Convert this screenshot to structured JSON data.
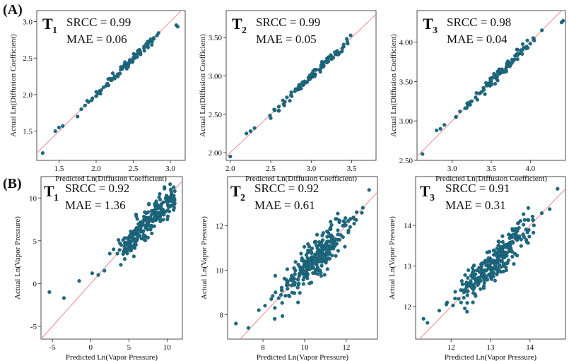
{
  "panel_labels": [
    "(A)",
    "(B)"
  ],
  "colors": {
    "point": "#1d6b82",
    "point_edge": "#0f4a5c",
    "diagonal": "#f08a8a",
    "frame": "#222222"
  },
  "chart_data": [
    {
      "type": "scatter",
      "id": "A1",
      "name_main": "T",
      "name_sub": "1",
      "stat_lines": [
        "SRCC = 0.99",
        "MAE = 0.06"
      ],
      "xlabel": "Predicted Ln(Diffusion Coefficient)",
      "ylabel": "Actual Ln(Diffusion Coefficient)",
      "xlim": [
        1.2,
        3.2
      ],
      "ylim": [
        1.1,
        3.15
      ],
      "xticks": [
        1.5,
        2.0,
        2.5,
        3.0
      ],
      "xtick_labels": [
        "1.5",
        "2.0",
        "2.5",
        "3.0"
      ],
      "yticks": [
        1.5,
        2.0,
        2.5,
        3.0
      ],
      "ytick_labels": [
        "1.5",
        "2.0",
        "2.5",
        "3.0"
      ],
      "trend": "linear",
      "seed": 11,
      "n_generated": 70,
      "spread": 0.03,
      "x": [
        1.28,
        1.45,
        1.5,
        1.55,
        1.75,
        1.8,
        1.85,
        1.9,
        1.95,
        2.0,
        2.05,
        2.1,
        2.15,
        2.2,
        2.25,
        2.3,
        2.35,
        2.4,
        2.45,
        2.5,
        2.55,
        2.6,
        2.65,
        2.7,
        2.75,
        3.08,
        3.1
      ],
      "y": [
        1.2,
        1.5,
        1.55,
        1.57,
        1.7,
        1.8,
        1.85,
        1.9,
        1.95,
        1.98,
        2.05,
        2.1,
        2.15,
        2.2,
        2.22,
        2.28,
        2.35,
        2.42,
        2.45,
        2.5,
        2.52,
        2.55,
        2.6,
        2.7,
        2.68,
        2.95,
        2.93
      ]
    },
    {
      "type": "scatter",
      "id": "A2",
      "name_main": "T",
      "name_sub": "2",
      "stat_lines": [
        "SRCC = 0.99",
        "MAE = 0.05"
      ],
      "xlabel": "Predicted Ln(Diffusion Coefficient)",
      "ylabel": "Actual Ln(Diffusion Coefficient)",
      "xlim": [
        1.95,
        3.8
      ],
      "ylim": [
        1.9,
        3.85
      ],
      "xticks": [
        2.0,
        2.5,
        3.0,
        3.5
      ],
      "xtick_labels": [
        "2.0",
        "2.5",
        "3.0",
        "3.5"
      ],
      "yticks": [
        2.0,
        2.5,
        3.0,
        3.5
      ],
      "ytick_labels": [
        "2.00",
        "2.50",
        "3.00",
        "3.50"
      ],
      "trend": "linear",
      "seed": 23,
      "n_generated": 75,
      "spread": 0.03,
      "x": [
        2.0,
        2.2,
        2.25,
        2.3,
        2.5,
        2.55,
        2.6,
        2.65,
        2.7,
        2.75,
        2.8,
        2.85,
        2.9,
        2.95,
        3.0,
        3.05,
        3.1,
        3.15,
        3.2,
        3.25,
        3.3,
        3.35,
        3.4,
        3.45,
        3.8,
        3.81
      ],
      "y": [
        1.95,
        2.25,
        2.28,
        2.32,
        2.45,
        2.55,
        2.6,
        2.68,
        2.72,
        2.75,
        2.8,
        2.85,
        2.88,
        2.92,
        3.0,
        3.02,
        3.08,
        3.12,
        3.2,
        3.22,
        3.28,
        3.3,
        3.38,
        3.42,
        3.65,
        3.67
      ]
    },
    {
      "type": "scatter",
      "id": "A3",
      "name_main": "T",
      "name_sub": "3",
      "stat_lines": [
        "SRCC = 0.98",
        "MAE = 0.04"
      ],
      "xlabel": "Predicted Ln(Diffusion Coefficient)",
      "ylabel": "Actual Ln(Diffusion Coefficient)",
      "xlim": [
        2.55,
        4.45
      ],
      "ylim": [
        2.5,
        4.4
      ],
      "xticks": [
        3.0,
        3.5,
        4.0
      ],
      "xtick_labels": [
        "3.0",
        "3.5",
        "4.0"
      ],
      "yticks": [
        2.5,
        3.0,
        3.5,
        4.0
      ],
      "ytick_labels": [
        "2.50",
        "3.00",
        "3.50",
        "4.00"
      ],
      "trend": "linear",
      "seed": 37,
      "n_generated": 80,
      "spread": 0.035,
      "x": [
        2.62,
        2.8,
        2.85,
        2.9,
        3.05,
        3.1,
        3.2,
        3.25,
        3.3,
        3.35,
        3.4,
        3.45,
        3.5,
        3.55,
        3.6,
        3.65,
        3.7,
        3.75,
        3.8,
        3.85,
        3.9,
        3.95,
        4.0,
        4.05,
        4.4,
        4.42
      ],
      "y": [
        2.58,
        2.88,
        2.9,
        2.95,
        3.05,
        3.12,
        3.2,
        3.25,
        3.3,
        3.35,
        3.42,
        3.45,
        3.5,
        3.55,
        3.6,
        3.62,
        3.7,
        3.72,
        3.78,
        3.85,
        3.9,
        3.92,
        3.98,
        4.02,
        4.25,
        4.27
      ]
    },
    {
      "type": "scatter",
      "id": "B1",
      "name_main": "T",
      "name_sub": "1",
      "stat_lines": [
        "SRCC = 0.92",
        "MAE = 1.36"
      ],
      "xlabel": "Predicted Ln(Vapor Pressure)",
      "ylabel": "Actual Ln(Vapor Pressure)",
      "xlim": [
        -6.5,
        12
      ],
      "ylim": [
        -6.5,
        12.5
      ],
      "xticks": [
        -5,
        0,
        5,
        10
      ],
      "xtick_labels": [
        "-5",
        "0",
        "5",
        "10"
      ],
      "yticks": [
        -5,
        0,
        5,
        10
      ],
      "ytick_labels": [
        "-5",
        "0",
        "5",
        "10"
      ],
      "trend": "vapor",
      "seed": 53,
      "n_generated": 230,
      "spread": 0.9,
      "x": [
        -5.4,
        -3.5,
        -1.5,
        0.2,
        1.0,
        1.8,
        2.5,
        3.0,
        3.5,
        4.0,
        4.5,
        5.0,
        5.5,
        6.0,
        6.5,
        7.0,
        7.5,
        8.0,
        8.5,
        9.0,
        9.5,
        10.0,
        10.5,
        11.0
      ],
      "y": [
        -1.0,
        -1.7,
        0.3,
        1.2,
        1.0,
        1.5,
        3.5,
        4.0,
        3.5,
        4.5,
        4.0,
        5.0,
        6.0,
        6.5,
        7.0,
        7.5,
        7.0,
        8.5,
        8.0,
        9.0,
        9.5,
        10.0,
        11.0,
        10.8
      ]
    },
    {
      "type": "scatter",
      "id": "B2",
      "name_main": "T",
      "name_sub": "2",
      "stat_lines": [
        "SRCC = 0.92",
        "MAE = 0.61"
      ],
      "xlabel": "Predicted Ln(Vapor Pressure)",
      "ylabel": "Actual Ln(Vapor Pressure)",
      "xlim": [
        6.3,
        13.5
      ],
      "ylim": [
        6.9,
        14.2
      ],
      "xticks": [
        8,
        10,
        12
      ],
      "xtick_labels": [
        "8",
        "10",
        "12"
      ],
      "yticks": [
        8,
        10,
        12
      ],
      "ytick_labels": [
        "8",
        "10",
        "12"
      ],
      "trend": "linear",
      "seed": 71,
      "n_generated": 260,
      "spread": 0.45,
      "x": [
        6.7,
        7.3,
        7.8,
        8.1,
        8.4,
        8.6,
        8.9,
        9.2,
        9.5,
        9.8,
        10.1,
        10.4,
        10.7,
        11.0,
        11.3,
        11.6,
        11.9,
        12.2,
        12.5,
        12.8,
        13.1
      ],
      "y": [
        7.6,
        7.4,
        8.2,
        8.4,
        8.7,
        9.0,
        9.1,
        9.5,
        9.6,
        10.0,
        10.2,
        10.5,
        10.8,
        11.0,
        11.4,
        11.6,
        12.0,
        12.3,
        12.6,
        12.8,
        13.6
      ]
    },
    {
      "type": "scatter",
      "id": "B3",
      "name_main": "T",
      "name_sub": "3",
      "stat_lines": [
        "SRCC = 0.91",
        "MAE = 0.31"
      ],
      "xlabel": "Predicted Ln(Vapor Pressure)",
      "ylabel": "Actual Ln(Vapor Pressure)",
      "xlim": [
        11.1,
        14.9
      ],
      "ylim": [
        11.2,
        15.2
      ],
      "xticks": [
        12,
        13,
        14
      ],
      "xtick_labels": [
        "12",
        "13",
        "14"
      ],
      "yticks": [
        12,
        13,
        14
      ],
      "ytick_labels": [
        "12",
        "13",
        "14"
      ],
      "trend": "linear",
      "seed": 89,
      "n_generated": 270,
      "spread": 0.22,
      "x": [
        11.3,
        11.4,
        11.7,
        11.9,
        12.1,
        12.3,
        12.5,
        12.7,
        12.9,
        13.1,
        13.3,
        13.5,
        13.7,
        13.9,
        14.1,
        14.3,
        14.5,
        14.7
      ],
      "y": [
        11.7,
        11.6,
        11.9,
        12.1,
        12.2,
        12.4,
        12.6,
        12.7,
        12.9,
        13.1,
        13.3,
        13.5,
        13.7,
        13.9,
        14.0,
        14.3,
        14.4,
        14.9
      ]
    }
  ]
}
